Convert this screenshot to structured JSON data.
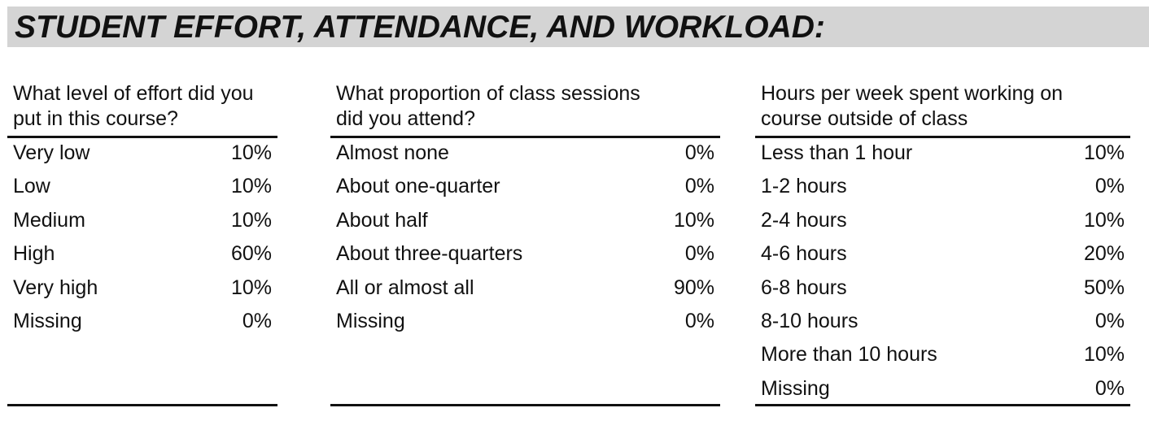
{
  "section_title": "STUDENT EFFORT, ATTENDANCE, AND WORKLOAD:",
  "panels": [
    {
      "question": "What level of effort did you\nput in this course?",
      "rows": [
        {
          "label": "Very low",
          "value": "10%"
        },
        {
          "label": "Low",
          "value": "10%"
        },
        {
          "label": "Medium",
          "value": "10%"
        },
        {
          "label": "High",
          "value": "60%"
        },
        {
          "label": "Very high",
          "value": "10%"
        },
        {
          "label": "Missing",
          "value": "0%"
        }
      ]
    },
    {
      "question": "What proportion of class sessions\ndid you attend?",
      "rows": [
        {
          "label": "Almost none",
          "value": "0%"
        },
        {
          "label": "About one-quarter",
          "value": "0%"
        },
        {
          "label": "About half",
          "value": "10%"
        },
        {
          "label": "About three-quarters",
          "value": "0%"
        },
        {
          "label": "All or almost all",
          "value": "90%"
        },
        {
          "label": "Missing",
          "value": "0%"
        }
      ]
    },
    {
      "question": "Hours per week spent working on\ncourse outside of class",
      "rows": [
        {
          "label": "Less than 1 hour",
          "value": "10%"
        },
        {
          "label": "1-2 hours",
          "value": "0%"
        },
        {
          "label": "2-4 hours",
          "value": "10%"
        },
        {
          "label": "4-6 hours",
          "value": "20%"
        },
        {
          "label": "6-8 hours",
          "value": "50%"
        },
        {
          "label": "8-10 hours",
          "value": "0%"
        },
        {
          "label": "More than 10 hours",
          "value": "10%"
        },
        {
          "label": "Missing",
          "value": "0%"
        }
      ]
    }
  ]
}
